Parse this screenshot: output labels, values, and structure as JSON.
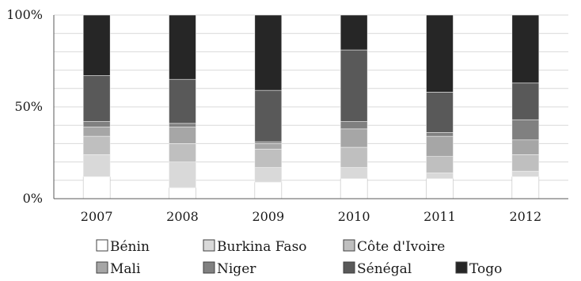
{
  "chart_data": {
    "type": "bar",
    "stacked": true,
    "percent_stacked": true,
    "categories": [
      "2007",
      "2008",
      "2009",
      "2010",
      "2011",
      "2012"
    ],
    "y_ticks": [
      "0%",
      "50%",
      "100%"
    ],
    "ylim": [
      0,
      100
    ],
    "grid": true,
    "legend_position": "bottom",
    "series": [
      {
        "name": "Bénin",
        "color": "#ffffff",
        "values": [
          12,
          6,
          9,
          11,
          11,
          12
        ]
      },
      {
        "name": "Burkina Faso",
        "color": "#d9d9d9",
        "values": [
          12,
          14,
          8,
          6,
          3,
          3
        ]
      },
      {
        "name": "Côte d'Ivoire",
        "color": "#bfbfbf",
        "values": [
          10,
          10,
          10,
          11,
          9,
          9
        ]
      },
      {
        "name": "Mali",
        "color": "#a6a6a6",
        "values": [
          5,
          9,
          3,
          10,
          11,
          8
        ]
      },
      {
        "name": "Niger",
        "color": "#808080",
        "values": [
          3,
          2,
          1,
          4,
          2,
          11
        ]
      },
      {
        "name": "Sénégal",
        "color": "#595959",
        "values": [
          25,
          24,
          28,
          39,
          22,
          20
        ]
      },
      {
        "name": "Togo",
        "color": "#262626",
        "values": [
          33,
          35,
          41,
          19,
          42,
          37
        ]
      }
    ]
  }
}
